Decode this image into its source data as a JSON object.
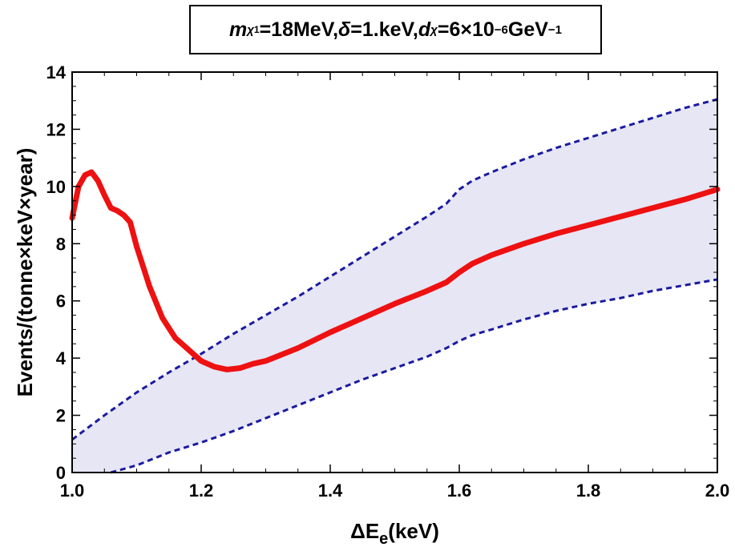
{
  "chart_data": {
    "type": "line",
    "title": {
      "parts": [
        {
          "t": "m",
          "style": "italic"
        },
        {
          "t": "χ",
          "style": "sub-italic"
        },
        {
          "t": "1",
          "style": "sub2"
        },
        {
          "t": "=18MeV, ",
          "style": "normal"
        },
        {
          "t": "δ",
          "style": "italic"
        },
        {
          "t": "=1.keV, ",
          "style": "normal"
        },
        {
          "t": "d",
          "style": "italic"
        },
        {
          "t": "χ",
          "style": "sub-italic"
        },
        {
          "t": "=6×10",
          "style": "normal"
        },
        {
          "t": "−6",
          "style": "sup"
        },
        {
          "t": "GeV",
          "style": "normal"
        },
        {
          "t": "−1",
          "style": "sup"
        }
      ]
    },
    "xlabel_main": "ΔE",
    "xlabel_sub": "e",
    "xlabel_tail": "(keV)",
    "ylabel": "Events/(tonne×keV×year)",
    "xlim": [
      1.0,
      2.0
    ],
    "ylim": [
      0,
      14
    ],
    "xticks": [
      1.0,
      1.2,
      1.4,
      1.6,
      1.8,
      2.0
    ],
    "xtick_labels": [
      "1.0",
      "1.2",
      "1.4",
      "1.6",
      "1.8",
      "2.0"
    ],
    "yticks": [
      0,
      2,
      4,
      6,
      8,
      10,
      12,
      14
    ],
    "ytick_labels": [
      "0",
      "2",
      "4",
      "6",
      "8",
      "10",
      "12",
      "14"
    ],
    "grid": false,
    "series": [
      {
        "role": "signal",
        "color": "#ee1111",
        "x": [
          1.0,
          1.01,
          1.02,
          1.03,
          1.04,
          1.05,
          1.06,
          1.07,
          1.08,
          1.09,
          1.1,
          1.12,
          1.14,
          1.16,
          1.18,
          1.2,
          1.22,
          1.24,
          1.26,
          1.28,
          1.3,
          1.35,
          1.4,
          1.45,
          1.5,
          1.55,
          1.58,
          1.6,
          1.62,
          1.65,
          1.7,
          1.75,
          1.8,
          1.85,
          1.9,
          1.95,
          2.0
        ],
        "y": [
          8.9,
          10.0,
          10.4,
          10.5,
          10.2,
          9.7,
          9.25,
          9.15,
          9.0,
          8.75,
          7.9,
          6.5,
          5.4,
          4.7,
          4.3,
          3.9,
          3.7,
          3.6,
          3.65,
          3.8,
          3.9,
          4.35,
          4.9,
          5.4,
          5.9,
          6.35,
          6.65,
          7.0,
          7.3,
          7.6,
          8.0,
          8.35,
          8.65,
          8.95,
          9.25,
          9.55,
          9.9
        ]
      },
      {
        "role": "band-upper",
        "color": "#1a1aa0",
        "style": "dashed",
        "x": [
          1.0,
          1.05,
          1.1,
          1.15,
          1.2,
          1.25,
          1.3,
          1.35,
          1.4,
          1.45,
          1.5,
          1.55,
          1.58,
          1.6,
          1.62,
          1.65,
          1.7,
          1.75,
          1.8,
          1.85,
          1.9,
          1.95,
          2.0
        ],
        "y": [
          1.15,
          2.0,
          2.8,
          3.5,
          4.15,
          4.85,
          5.5,
          6.15,
          6.85,
          7.55,
          8.25,
          8.95,
          9.4,
          9.9,
          10.2,
          10.5,
          10.95,
          11.35,
          11.7,
          12.05,
          12.4,
          12.75,
          13.05
        ]
      },
      {
        "role": "band-lower",
        "color": "#1a1aa0",
        "style": "dashed",
        "x": [
          1.06,
          1.1,
          1.15,
          1.2,
          1.25,
          1.3,
          1.35,
          1.4,
          1.45,
          1.5,
          1.55,
          1.58,
          1.6,
          1.62,
          1.65,
          1.7,
          1.75,
          1.8,
          1.85,
          1.9,
          1.95,
          2.0
        ],
        "y": [
          0.0,
          0.25,
          0.7,
          1.05,
          1.45,
          1.9,
          2.35,
          2.8,
          3.25,
          3.65,
          4.05,
          4.35,
          4.6,
          4.8,
          5.0,
          5.35,
          5.65,
          5.9,
          6.1,
          6.35,
          6.55,
          6.75
        ]
      }
    ],
    "band_fill_color": "#e6e6f5"
  }
}
